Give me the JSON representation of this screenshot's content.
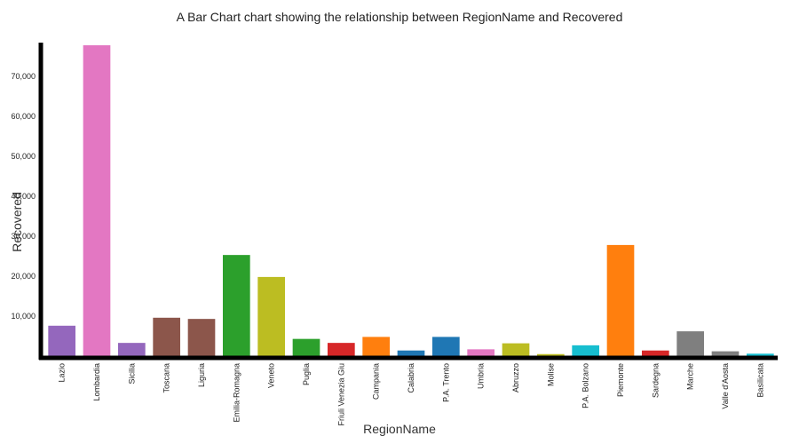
{
  "chart_data": {
    "type": "bar",
    "title": "A Bar Chart chart showing the relationship between RegionName and Recovered",
    "xlabel": "RegionName",
    "ylabel": "Recovered",
    "ylim": [
      0,
      78000
    ],
    "yticks": [
      10000,
      20000,
      30000,
      40000,
      50000,
      60000,
      70000
    ],
    "ytick_labels": [
      "10,000",
      "20,000",
      "30,000",
      "40,000",
      "50,000",
      "60,000",
      "70,000"
    ],
    "grid": false,
    "legend": "none",
    "categories": [
      "Lazio",
      "Lombardia",
      "Sicilia",
      "Toscana",
      "Liguria",
      "Emilia-Romagna",
      "Veneto",
      "Puglia",
      "Friuli Venezia Giulia",
      "Campania",
      "Calabria",
      "P.A. Trento",
      "Umbria",
      "Abruzzo",
      "Molise",
      "P.A. Bolzano",
      "Piemonte",
      "Sardegna",
      "Marche",
      "Valle d'Aosta",
      "Basilicata"
    ],
    "tick_labels": [
      "Lazio",
      "Lombardia",
      "Sicilia",
      "Toscana",
      "Liguria",
      "Emilia-Romagna",
      "Veneto",
      "Puglia",
      "Friuli Venezia Giu",
      "Campania",
      "Calabria",
      "P.A. Trento",
      "Umbria",
      "Abruzzo",
      "Molise",
      "P.A. Bolzano",
      "Piemonte",
      "Sardegna",
      "Marche",
      "Valle d'Aosta",
      "Basilicata"
    ],
    "values": [
      7600,
      77800,
      3300,
      9600,
      9300,
      25300,
      19800,
      4300,
      3300,
      4800,
      1400,
      4800,
      1700,
      3200,
      500,
      2700,
      27800,
      1400,
      6200,
      1200,
      600
    ],
    "colors": [
      "#9467bd",
      "#e377c2",
      "#9467bd",
      "#8c564b",
      "#8c564b",
      "#2ca02c",
      "#bcbd22",
      "#2ca02c",
      "#d62728",
      "#ff7f0e",
      "#1f77b4",
      "#1f77b4",
      "#e377c2",
      "#bcbd22",
      "#bcbd22",
      "#17becf",
      "#ff7f0e",
      "#d62728",
      "#7f7f7f",
      "#7f7f7f",
      "#17becf"
    ]
  }
}
